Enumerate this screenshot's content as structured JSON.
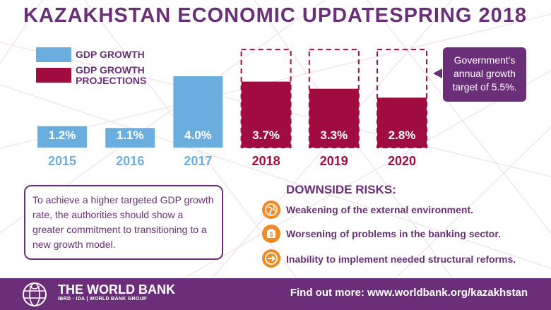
{
  "header": {
    "title": "KAZAKHSTAN  ECONOMIC  UPDATE",
    "season": "SPRING 2018"
  },
  "colors": {
    "brand_purple": "#6b2f7a",
    "actual_blue": "#6aaee0",
    "projection_crimson": "#a00c3f",
    "risk_orange": "#f08a24"
  },
  "legend": [
    {
      "label_line1": "GDP GROWTH",
      "label_line2": "",
      "color": "#6aaee0"
    },
    {
      "label_line1": "GDP GROWTH",
      "label_line2": "PROJECTIONS",
      "color": "#a00c3f"
    }
  ],
  "chart_data": {
    "type": "bar",
    "categories": [
      "2015",
      "2016",
      "2017",
      "2018",
      "2019",
      "2020"
    ],
    "values": [
      1.2,
      1.1,
      4.0,
      3.7,
      3.3,
      2.8
    ],
    "value_labels": [
      "1.2%",
      "1.1%",
      "4.0%",
      "3.7%",
      "3.3%",
      "2.8%"
    ],
    "series_kind": [
      "actual",
      "actual",
      "actual",
      "projection",
      "projection",
      "projection"
    ],
    "target": 5.5,
    "ylim": [
      0,
      5.5
    ],
    "legend_position": "top-left",
    "grid": false
  },
  "callout": {
    "line1": "Government's",
    "line2": "annual growth",
    "line3": "target of 5.5%."
  },
  "note": {
    "text": "To achieve a higher targeted GDP growth rate, the authorities should show a greater commitment to transitioning to a new growth model."
  },
  "risks": {
    "title": "DOWNSIDE RISKS:",
    "items": [
      {
        "icon": "globe-icon",
        "text": "Weakening of the external environment."
      },
      {
        "icon": "money-bag-icon",
        "text": "Worsening of problems in the banking sector."
      },
      {
        "icon": "arrow-right-icon",
        "text": "Inability to implement needed structural reforms."
      }
    ]
  },
  "footer": {
    "org_name": "THE WORLD BANK",
    "org_sub": "IBRD · IDA | WORLD BANK GROUP",
    "link_text": "Find out more: www.worldbank.org/kazakhstan"
  }
}
